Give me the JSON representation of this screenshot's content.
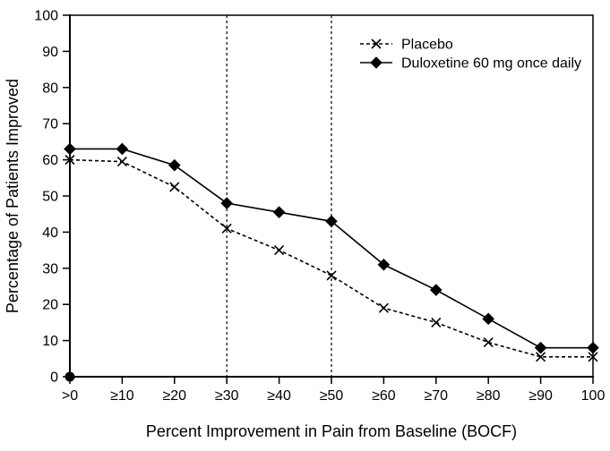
{
  "page": {
    "background": "#ffffff"
  },
  "chart_data": {
    "type": "line",
    "title": "",
    "xlabel": "Percent Improvement in Pain from Baseline (BOCF)",
    "ylabel": "Percentage of Patients Improved",
    "categories": [
      ">0",
      "≥10",
      "≥20",
      "≥30",
      "≥40",
      "≥50",
      "≥60",
      "≥70",
      "≥80",
      "≥90",
      "100"
    ],
    "ylim": [
      0,
      100
    ],
    "yticks": [
      0,
      10,
      20,
      30,
      40,
      50,
      60,
      70,
      80,
      90,
      100
    ],
    "series": [
      {
        "name": "Placebo",
        "marker": "x-cross",
        "line_style": "dashed",
        "color": "#000000",
        "values": [
          60,
          59.5,
          52.5,
          41,
          35,
          28,
          19,
          15,
          9.5,
          5.5,
          5.5
        ]
      },
      {
        "name": "Duloxetine 60 mg once daily",
        "marker": "diamond",
        "line_style": "solid",
        "color": "#000000",
        "values": [
          63,
          63,
          58.5,
          48,
          45.5,
          43,
          31,
          24,
          16,
          8,
          8
        ]
      }
    ],
    "reference_lines": [
      {
        "at_category": "≥30",
        "orientation": "vertical",
        "style": "dashed"
      },
      {
        "at_category": "≥50",
        "orientation": "vertical",
        "style": "dashed"
      }
    ],
    "origin_point": {
      "category": ">0",
      "value": 0,
      "marker": "filled-circle"
    },
    "legend": {
      "position": "inside-top-right"
    },
    "grid": false,
    "axis_color": "#000000",
    "background": "#ffffff"
  }
}
